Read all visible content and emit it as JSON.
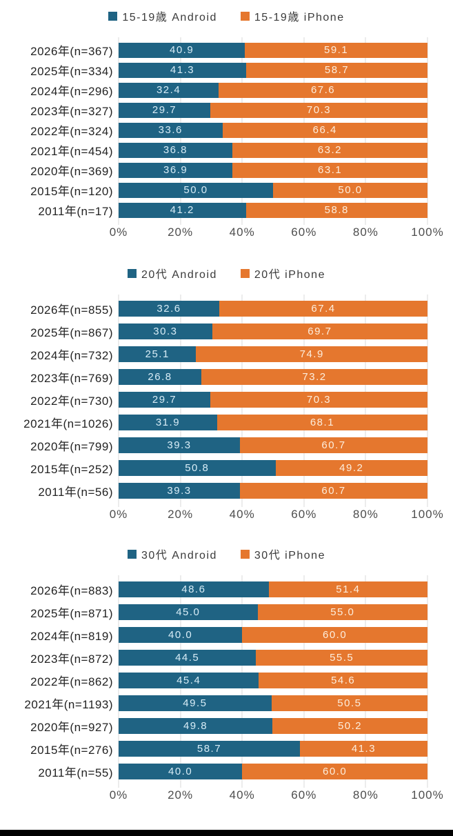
{
  "colors": {
    "android": "#1f6383",
    "iphone": "#e5772e",
    "grid": "#d9d9d9",
    "value_text_android": "#d8edf7",
    "value_text_iphone": "#fdeedd",
    "bottom_border": "#000000"
  },
  "axis": {
    "ticks": [
      "0%",
      "20%",
      "40%",
      "60%",
      "80%",
      "100%"
    ]
  },
  "chart_data": [
    {
      "type": "bar",
      "stacked": true,
      "orientation": "horizontal",
      "title": "",
      "legend_position": "top",
      "xlim": [
        0,
        100
      ],
      "xticks": [
        "0%",
        "20%",
        "40%",
        "60%",
        "80%",
        "100%"
      ],
      "grid": true,
      "categories": [
        "2026年(n=367)",
        "2025年(n=334)",
        "2024年(n=296)",
        "2023年(n=327)",
        "2022年(n=324)",
        "2021年(n=454)",
        "2020年(n=369)",
        "2015年(n=120)",
        "2011年(n=17)"
      ],
      "series": [
        {
          "name": "15-19歳 Android",
          "values": [
            40.9,
            41.3,
            32.4,
            29.7,
            33.6,
            36.8,
            36.9,
            50.0,
            41.2
          ]
        },
        {
          "name": "15-19歳 iPhone",
          "values": [
            59.1,
            58.7,
            67.6,
            70.3,
            66.4,
            63.2,
            63.1,
            50.0,
            58.8
          ]
        }
      ]
    },
    {
      "type": "bar",
      "stacked": true,
      "orientation": "horizontal",
      "title": "",
      "legend_position": "top",
      "xlim": [
        0,
        100
      ],
      "xticks": [
        "0%",
        "20%",
        "40%",
        "60%",
        "80%",
        "100%"
      ],
      "grid": true,
      "categories": [
        "2026年(n=855)",
        "2025年(n=867)",
        "2024年(n=732)",
        "2023年(n=769)",
        "2022年(n=730)",
        "2021年(n=1026)",
        "2020年(n=799)",
        "2015年(n=252)",
        "2011年(n=56)"
      ],
      "series": [
        {
          "name": "20代 Android",
          "values": [
            32.6,
            30.3,
            25.1,
            26.8,
            29.7,
            31.9,
            39.3,
            50.8,
            39.3
          ]
        },
        {
          "name": "20代 iPhone",
          "values": [
            67.4,
            69.7,
            74.9,
            73.2,
            70.3,
            68.1,
            60.7,
            49.2,
            60.7
          ]
        }
      ]
    },
    {
      "type": "bar",
      "stacked": true,
      "orientation": "horizontal",
      "title": "",
      "legend_position": "top",
      "xlim": [
        0,
        100
      ],
      "xticks": [
        "0%",
        "20%",
        "40%",
        "60%",
        "80%",
        "100%"
      ],
      "grid": true,
      "categories": [
        "2026年(n=883)",
        "2025年(n=871)",
        "2024年(n=819)",
        "2023年(n=872)",
        "2022年(n=862)",
        "2021年(n=1193)",
        "2020年(n=927)",
        "2015年(n=276)",
        "2011年(n=55)"
      ],
      "series": [
        {
          "name": "30代 Android",
          "values": [
            48.6,
            45.0,
            40.0,
            44.5,
            45.4,
            49.5,
            49.8,
            58.7,
            40.0
          ]
        },
        {
          "name": "30代 iPhone",
          "values": [
            51.4,
            55.0,
            60.0,
            55.5,
            54.6,
            50.5,
            50.2,
            41.3,
            60.0
          ]
        }
      ]
    }
  ]
}
